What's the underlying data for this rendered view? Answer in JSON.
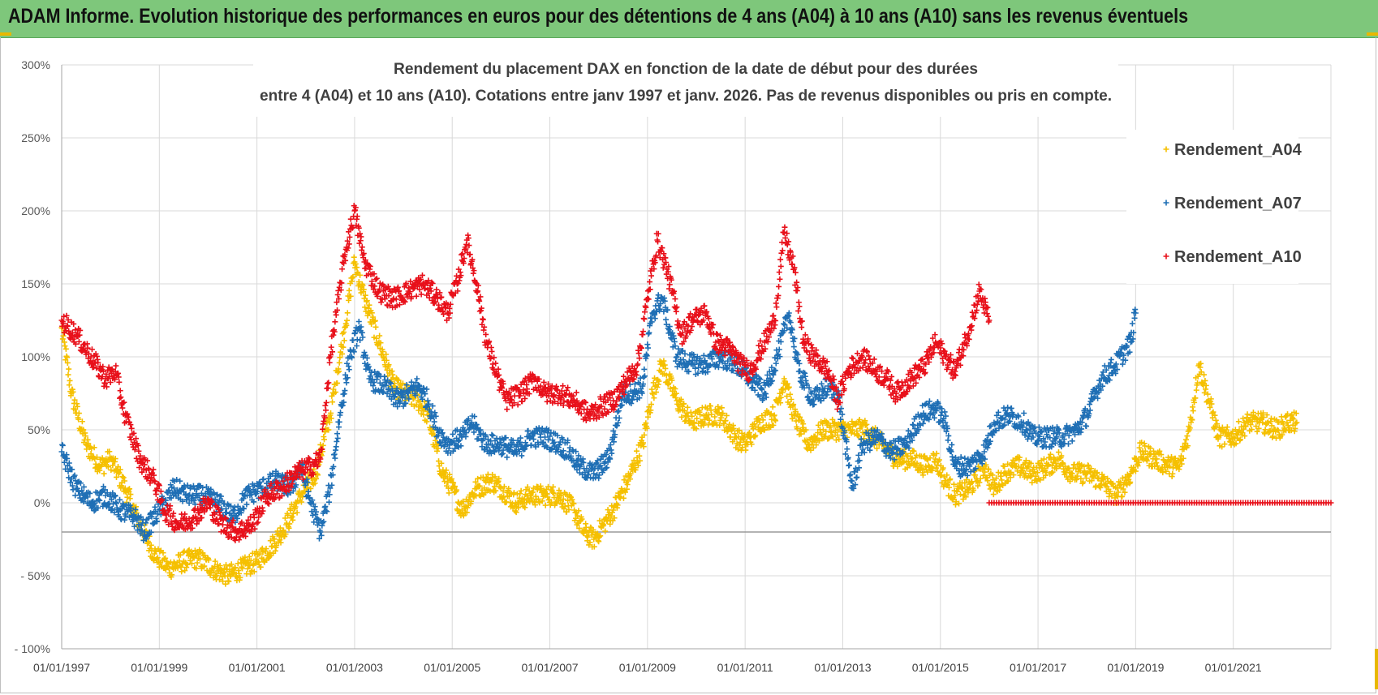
{
  "header": {
    "title": "ADAM Informe. Evolution historique des performances en euros pour des détentions de 4 ans (A04) à 10 ans (A10) sans les revenus éventuels"
  },
  "colors": {
    "header_bg": "#7ec77b",
    "A04": "#f5c000",
    "A07": "#1f6fb5",
    "A10": "#e8101a",
    "grid": "#d9d9d9",
    "ref_line": "#9a9a9a"
  },
  "chart_data": {
    "type": "scatter",
    "title_line1": "Rendement du placement DAX en fonction de la date de début pour des durées",
    "title_line2": "entre 4 (A04) et 10 ans (A10).  Cotations entre janv 1997 et janv. 2026. Pas de revenus disponibles ou pris en compte.",
    "xlabel": "",
    "ylabel": "",
    "xlim": [
      1997.0,
      2023.0
    ],
    "ylim": [
      -100,
      300
    ],
    "x_ticks": [
      1997,
      1999,
      2001,
      2003,
      2005,
      2007,
      2009,
      2011,
      2013,
      2015,
      2017,
      2019,
      2021
    ],
    "x_tick_labels": [
      "01/01/1997",
      "01/01/1999",
      "01/01/2001",
      "01/01/2003",
      "01/01/2005",
      "01/01/2007",
      "01/01/2009",
      "01/01/2011",
      "01/01/2013",
      "01/01/2015",
      "01/01/2017",
      "01/01/2019",
      "01/01/2021"
    ],
    "y_ticks": [
      300,
      250,
      200,
      150,
      100,
      50,
      0,
      -50,
      -100
    ],
    "y_tick_labels": [
      "300%",
      "250%",
      "200%",
      "150%",
      "100%",
      "50%",
      "0%",
      "- 50%",
      "- 100%"
    ],
    "reference_line_y": -20,
    "legend_position": "top-right",
    "series": [
      {
        "name": "Rendement_A04",
        "key": "A04",
        "points": [
          [
            1997.0,
            120
          ],
          [
            1997.2,
            75
          ],
          [
            1997.5,
            40
          ],
          [
            1997.8,
            25
          ],
          [
            1998.0,
            30
          ],
          [
            1998.3,
            10
          ],
          [
            1998.6,
            -15
          ],
          [
            1998.9,
            -35
          ],
          [
            1999.2,
            -45
          ],
          [
            1999.5,
            -40
          ],
          [
            1999.8,
            -38
          ],
          [
            2000.1,
            -45
          ],
          [
            2000.4,
            -50
          ],
          [
            2000.7,
            -45
          ],
          [
            2001.0,
            -40
          ],
          [
            2001.3,
            -30
          ],
          [
            2001.6,
            -15
          ],
          [
            2001.9,
            5
          ],
          [
            2002.2,
            20
          ],
          [
            2002.5,
            60
          ],
          [
            2002.8,
            120
          ],
          [
            2003.0,
            165
          ],
          [
            2003.2,
            140
          ],
          [
            2003.5,
            110
          ],
          [
            2003.8,
            80
          ],
          [
            2004.0,
            75
          ],
          [
            2004.3,
            70
          ],
          [
            2004.5,
            60
          ],
          [
            2004.8,
            20
          ],
          [
            2005.0,
            10
          ],
          [
            2005.2,
            -5
          ],
          [
            2005.5,
            10
          ],
          [
            2005.8,
            15
          ],
          [
            2006.0,
            10
          ],
          [
            2006.3,
            0
          ],
          [
            2006.6,
            5
          ],
          [
            2006.9,
            5
          ],
          [
            2007.2,
            5
          ],
          [
            2007.5,
            -5
          ],
          [
            2007.7,
            -20
          ],
          [
            2007.9,
            -25
          ],
          [
            2008.1,
            -15
          ],
          [
            2008.3,
            -5
          ],
          [
            2008.6,
            15
          ],
          [
            2008.9,
            40
          ],
          [
            2009.1,
            75
          ],
          [
            2009.3,
            95
          ],
          [
            2009.6,
            70
          ],
          [
            2009.9,
            55
          ],
          [
            2010.2,
            60
          ],
          [
            2010.5,
            60
          ],
          [
            2010.8,
            45
          ],
          [
            2011.0,
            40
          ],
          [
            2011.3,
            55
          ],
          [
            2011.6,
            60
          ],
          [
            2011.8,
            85
          ],
          [
            2012.0,
            60
          ],
          [
            2012.3,
            40
          ],
          [
            2012.6,
            50
          ],
          [
            2012.9,
            50
          ],
          [
            2013.2,
            50
          ],
          [
            2013.5,
            50
          ],
          [
            2013.8,
            40
          ],
          [
            2014.1,
            30
          ],
          [
            2014.4,
            30
          ],
          [
            2014.7,
            25
          ],
          [
            2014.9,
            30
          ],
          [
            2015.1,
            15
          ],
          [
            2015.3,
            5
          ],
          [
            2015.6,
            10
          ],
          [
            2015.9,
            25
          ],
          [
            2016.1,
            10
          ],
          [
            2016.3,
            20
          ],
          [
            2016.6,
            25
          ],
          [
            2016.9,
            20
          ],
          [
            2017.2,
            25
          ],
          [
            2017.4,
            30
          ],
          [
            2017.7,
            20
          ],
          [
            2018.0,
            20
          ],
          [
            2018.3,
            15
          ],
          [
            2018.6,
            5
          ],
          [
            2018.9,
            20
          ],
          [
            2019.1,
            35
          ],
          [
            2019.4,
            30
          ],
          [
            2019.7,
            25
          ],
          [
            2019.9,
            25
          ],
          [
            2020.1,
            50
          ],
          [
            2020.3,
            95
          ],
          [
            2020.5,
            70
          ],
          [
            2020.7,
            45
          ],
          [
            2021.0,
            45
          ],
          [
            2021.3,
            55
          ],
          [
            2021.6,
            55
          ],
          [
            2021.9,
            50
          ],
          [
            2022.1,
            55
          ],
          [
            2022.3,
            55
          ]
        ]
      },
      {
        "name": "Rendement_A07",
        "key": "A07",
        "points": [
          [
            1997.0,
            35
          ],
          [
            1997.3,
            10
          ],
          [
            1997.6,
            0
          ],
          [
            1997.9,
            5
          ],
          [
            1998.2,
            -5
          ],
          [
            1998.5,
            -10
          ],
          [
            1998.7,
            -20
          ],
          [
            1999.0,
            -5
          ],
          [
            1999.3,
            10
          ],
          [
            1999.6,
            5
          ],
          [
            1999.9,
            5
          ],
          [
            2000.2,
            0
          ],
          [
            2000.5,
            -10
          ],
          [
            2000.8,
            5
          ],
          [
            2001.1,
            10
          ],
          [
            2001.4,
            15
          ],
          [
            2001.7,
            10
          ],
          [
            2001.9,
            25
          ],
          [
            2002.1,
            0
          ],
          [
            2002.3,
            -20
          ],
          [
            2002.5,
            10
          ],
          [
            2002.7,
            60
          ],
          [
            2002.9,
            100
          ],
          [
            2003.1,
            120
          ],
          [
            2003.3,
            85
          ],
          [
            2003.6,
            80
          ],
          [
            2003.9,
            70
          ],
          [
            2004.1,
            75
          ],
          [
            2004.3,
            80
          ],
          [
            2004.5,
            70
          ],
          [
            2004.7,
            50
          ],
          [
            2004.9,
            40
          ],
          [
            2005.2,
            45
          ],
          [
            2005.4,
            55
          ],
          [
            2005.7,
            40
          ],
          [
            2006.0,
            40
          ],
          [
            2006.3,
            35
          ],
          [
            2006.6,
            45
          ],
          [
            2006.9,
            45
          ],
          [
            2007.2,
            40
          ],
          [
            2007.4,
            35
          ],
          [
            2007.6,
            25
          ],
          [
            2007.9,
            20
          ],
          [
            2008.2,
            30
          ],
          [
            2008.5,
            75
          ],
          [
            2008.7,
            75
          ],
          [
            2008.9,
            80
          ],
          [
            2009.1,
            130
          ],
          [
            2009.3,
            140
          ],
          [
            2009.6,
            100
          ],
          [
            2009.9,
            95
          ],
          [
            2010.2,
            95
          ],
          [
            2010.5,
            100
          ],
          [
            2010.8,
            95
          ],
          [
            2011.1,
            85
          ],
          [
            2011.4,
            75
          ],
          [
            2011.7,
            105
          ],
          [
            2011.9,
            130
          ],
          [
            2012.1,
            90
          ],
          [
            2012.4,
            70
          ],
          [
            2012.7,
            80
          ],
          [
            2012.9,
            75
          ],
          [
            2013.1,
            30
          ],
          [
            2013.2,
            10
          ],
          [
            2013.4,
            40
          ],
          [
            2013.7,
            45
          ],
          [
            2014.0,
            35
          ],
          [
            2014.3,
            40
          ],
          [
            2014.6,
            60
          ],
          [
            2014.9,
            65
          ],
          [
            2015.1,
            55
          ],
          [
            2015.3,
            25
          ],
          [
            2015.6,
            25
          ],
          [
            2015.9,
            35
          ],
          [
            2016.1,
            55
          ],
          [
            2016.4,
            60
          ],
          [
            2016.7,
            55
          ],
          [
            2016.9,
            45
          ],
          [
            2017.2,
            45
          ],
          [
            2017.5,
            45
          ],
          [
            2017.8,
            50
          ],
          [
            2018.0,
            60
          ],
          [
            2018.3,
            85
          ],
          [
            2018.6,
            95
          ],
          [
            2018.9,
            110
          ],
          [
            2019.0,
            130
          ]
        ]
      },
      {
        "name": "Rendement_A10",
        "key": "A10",
        "points": [
          [
            1997.0,
            125
          ],
          [
            1997.3,
            115
          ],
          [
            1997.6,
            100
          ],
          [
            1997.9,
            85
          ],
          [
            1998.1,
            90
          ],
          [
            1998.3,
            60
          ],
          [
            1998.6,
            30
          ],
          [
            1998.9,
            15
          ],
          [
            1999.1,
            -5
          ],
          [
            1999.4,
            -15
          ],
          [
            1999.7,
            -10
          ],
          [
            2000.0,
            0
          ],
          [
            2000.3,
            -15
          ],
          [
            2000.6,
            -20
          ],
          [
            2000.9,
            -15
          ],
          [
            2001.2,
            5
          ],
          [
            2001.5,
            10
          ],
          [
            2001.8,
            20
          ],
          [
            2002.1,
            25
          ],
          [
            2002.3,
            30
          ],
          [
            2002.5,
            100
          ],
          [
            2002.8,
            170
          ],
          [
            2003.0,
            200
          ],
          [
            2003.2,
            165
          ],
          [
            2003.5,
            145
          ],
          [
            2003.8,
            140
          ],
          [
            2004.1,
            145
          ],
          [
            2004.4,
            150
          ],
          [
            2004.7,
            140
          ],
          [
            2004.9,
            130
          ],
          [
            2005.1,
            150
          ],
          [
            2005.3,
            180
          ],
          [
            2005.5,
            150
          ],
          [
            2005.7,
            110
          ],
          [
            2005.9,
            90
          ],
          [
            2006.1,
            70
          ],
          [
            2006.4,
            75
          ],
          [
            2006.7,
            85
          ],
          [
            2006.9,
            75
          ],
          [
            2007.2,
            75
          ],
          [
            2007.5,
            70
          ],
          [
            2007.8,
            60
          ],
          [
            2008.0,
            65
          ],
          [
            2008.3,
            70
          ],
          [
            2008.6,
            85
          ],
          [
            2008.8,
            95
          ],
          [
            2009.0,
            140
          ],
          [
            2009.2,
            180
          ],
          [
            2009.4,
            160
          ],
          [
            2009.7,
            115
          ],
          [
            2009.9,
            125
          ],
          [
            2010.2,
            130
          ],
          [
            2010.4,
            110
          ],
          [
            2010.7,
            105
          ],
          [
            2010.9,
            95
          ],
          [
            2011.1,
            90
          ],
          [
            2011.4,
            110
          ],
          [
            2011.6,
            125
          ],
          [
            2011.8,
            185
          ],
          [
            2012.0,
            160
          ],
          [
            2012.2,
            110
          ],
          [
            2012.4,
            100
          ],
          [
            2012.7,
            90
          ],
          [
            2012.9,
            70
          ],
          [
            2013.1,
            90
          ],
          [
            2013.4,
            100
          ],
          [
            2013.7,
            90
          ],
          [
            2013.9,
            85
          ],
          [
            2014.1,
            75
          ],
          [
            2014.4,
            85
          ],
          [
            2014.7,
            95
          ],
          [
            2014.9,
            110
          ],
          [
            2015.1,
            100
          ],
          [
            2015.3,
            90
          ],
          [
            2015.6,
            120
          ],
          [
            2015.8,
            145
          ],
          [
            2016.0,
            125
          ]
        ]
      }
    ],
    "A10_zero_segment": {
      "x_start": 2016.0,
      "x_end": 2023.0,
      "value": 0
    }
  }
}
